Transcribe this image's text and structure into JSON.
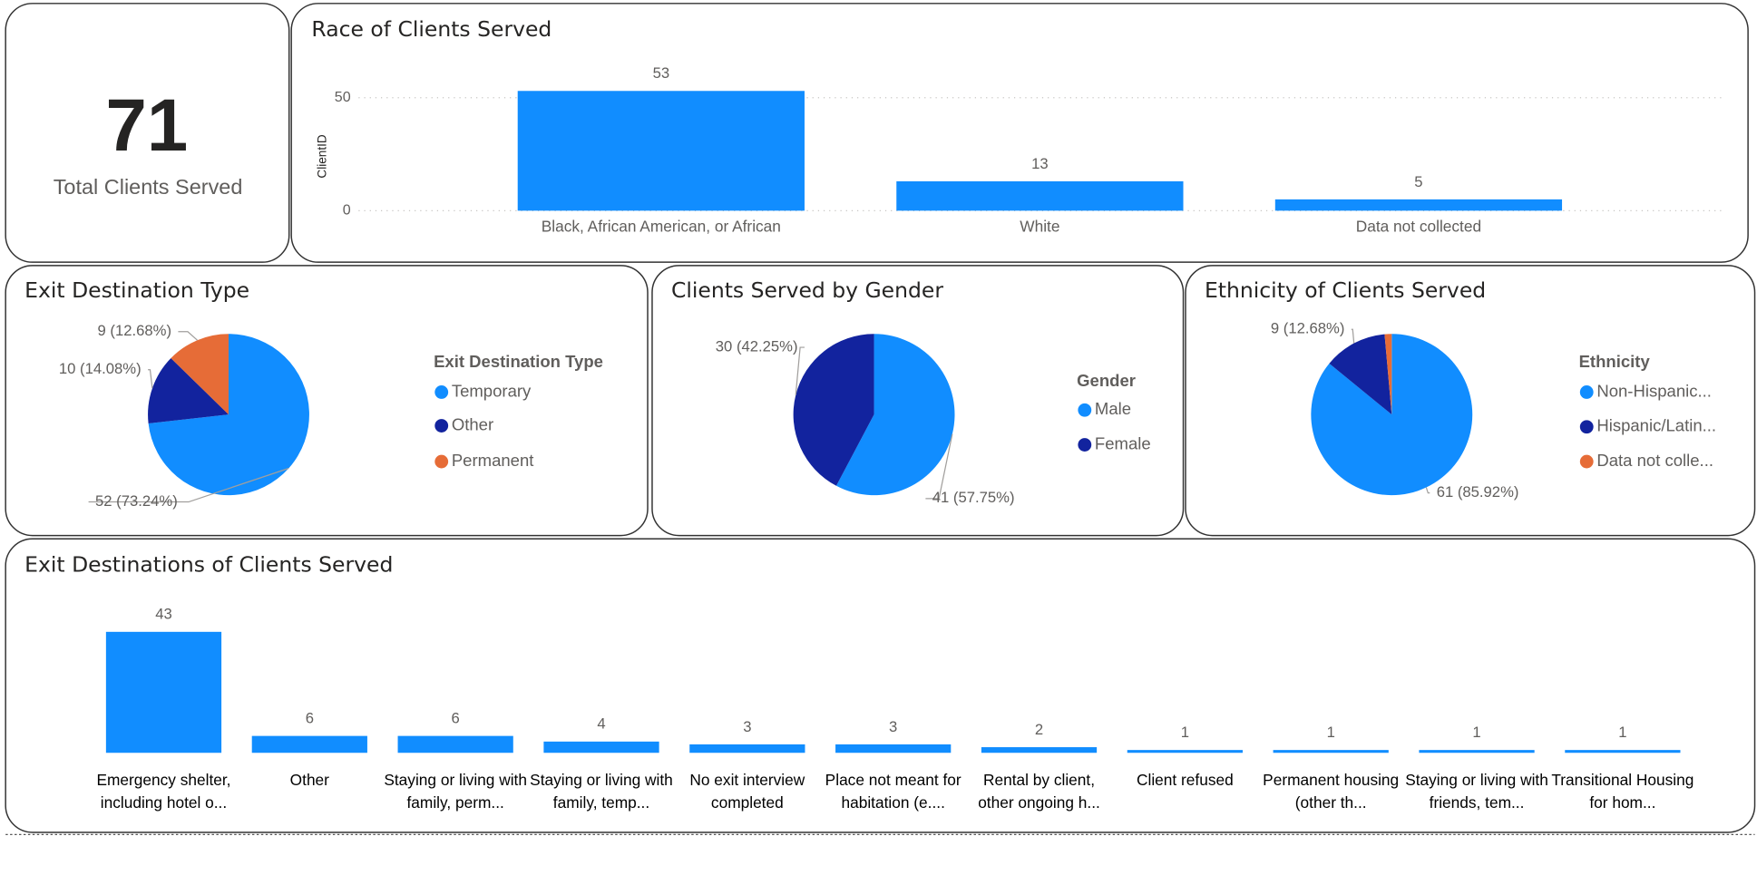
{
  "card": {
    "value": 71,
    "label": "Total Clients Served"
  },
  "chart_data": [
    {
      "type": "bar",
      "title": "Race of Clients Served",
      "y_label": "ClientID",
      "categories": [
        "Black, African American, or African",
        "White",
        "Data not collected"
      ],
      "values": [
        53,
        13,
        5
      ],
      "color": "#118DFF",
      "ylim": [
        0,
        58
      ],
      "yticks": [
        0,
        50
      ],
      "grid": true
    },
    {
      "type": "pie",
      "title": "Exit Destination Type",
      "legend_title": "Exit Destination Type",
      "categories": [
        "Temporary",
        "Other",
        "Permanent"
      ],
      "values": [
        52,
        10,
        9
      ],
      "value_labels": [
        "52 (73.24%)",
        "10 (14.08%)",
        "9 (12.68%)"
      ],
      "colors": [
        "#118DFF",
        "#12239E",
        "#E66C37"
      ]
    },
    {
      "type": "pie",
      "title": "Clients Served by Gender",
      "legend_title": "Gender",
      "categories": [
        "Male",
        "Female"
      ],
      "values": [
        41,
        30
      ],
      "value_labels": [
        "41 (57.75%)",
        "30 (42.25%)"
      ],
      "colors": [
        "#118DFF",
        "#12239E"
      ]
    },
    {
      "type": "pie",
      "title": "Ethnicity of Clients Served",
      "legend_title": "Ethnicity",
      "categories": [
        "Non-Hispanic...",
        "Hispanic/Latin...",
        "Data not colle..."
      ],
      "values": [
        61,
        9,
        1
      ],
      "value_labels": [
        "61 (85.92%)",
        "9 (12.68%)",
        null
      ],
      "colors": [
        "#118DFF",
        "#12239E",
        "#E66C37"
      ]
    },
    {
      "type": "bar",
      "title": "Exit Destinations of Clients Served",
      "categories": [
        "Emergency shelter, including hotel o...",
        "Other",
        "Staying or living with family, perm...",
        "Staying or living with family, temp...",
        "No exit interview completed",
        "Place not meant for habitation (e....",
        "Rental by client, other ongoing h...",
        "Client refused",
        "Permanent housing (other th...",
        "Staying or living with friends, tem...",
        "Transitional Housing for hom..."
      ],
      "values": [
        43,
        6,
        6,
        4,
        3,
        3,
        2,
        1,
        1,
        1,
        1
      ],
      "color": "#118DFF"
    }
  ]
}
